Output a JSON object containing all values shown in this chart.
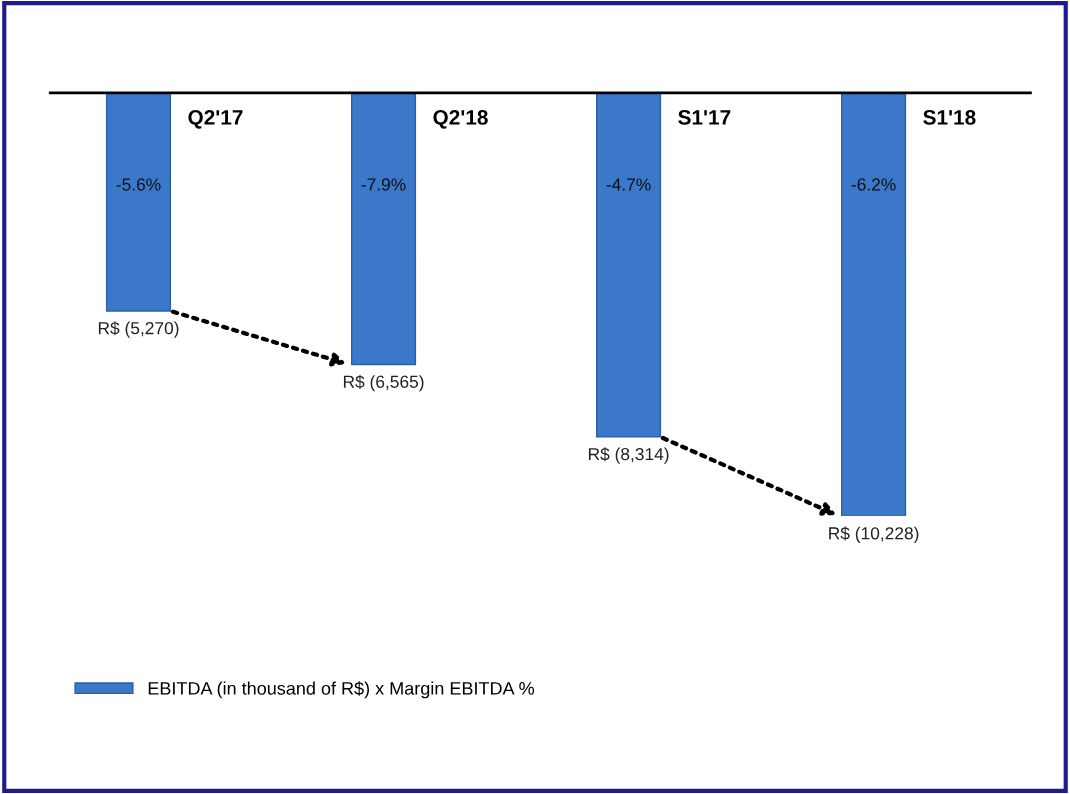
{
  "chart_data": {
    "type": "bar",
    "categories": [
      "Q2'17",
      "Q2'18",
      "S1'17",
      "S1'18"
    ],
    "series": [
      {
        "name": "EBITDA (in thousand of R$) x Margin EBITDA %",
        "color": "#3b78c9",
        "values": [
          -5270,
          -6565,
          -8314,
          -10228
        ],
        "value_labels": [
          "R$ (5,270)",
          "R$ (6,565)",
          "R$ (8,314)",
          "R$ (10,228)"
        ]
      }
    ],
    "tick_labels": false,
    "legend": "bottom left",
    "annotations": [
      "-5.6%",
      "-7.9%",
      "-4.7%",
      "-6.2%"
    ]
  }
}
